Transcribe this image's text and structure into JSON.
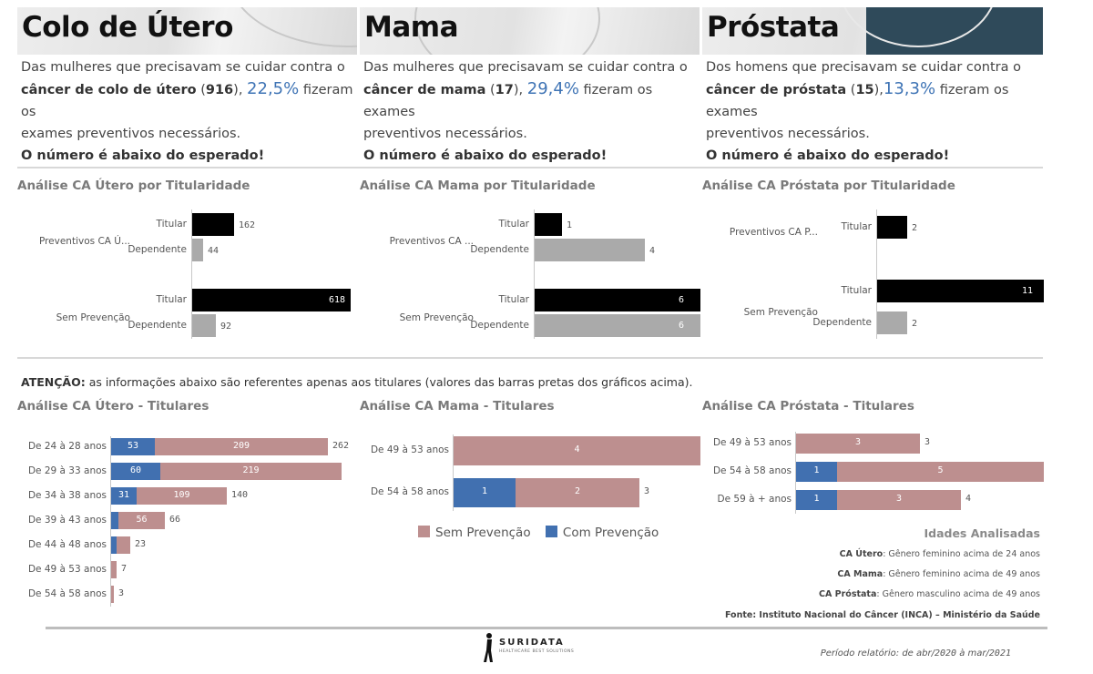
{
  "colors": {
    "black": "#000000",
    "gray": "#aaaaaa",
    "pink": "#bd8f8f",
    "blue": "#4170b0",
    "accent": "#3f74b5"
  },
  "headers": [
    {
      "title": "Colo de Útero",
      "line1": "Das mulheres que precisavam se cuidar contra o",
      "cancer": "câncer de colo de útero",
      "count": "916",
      "pct": "22,5%",
      "rest": "fizeram os",
      "line3": "exames preventivos necessários.",
      "warning": "O número é abaixo do esperado!"
    },
    {
      "title": "Mama",
      "line1": "Das mulheres que precisavam se cuidar contra o",
      "cancer": "câncer de mama",
      "count": "17",
      "pct": "29,4%",
      "rest": "fizeram os exames",
      "line3": "preventivos necessários.",
      "warning": "O número é abaixo do esperado!"
    },
    {
      "title": "Próstata",
      "line1": "Dos homens que precisavam se cuidar contra o",
      "cancer": "câncer de próstata",
      "count": "15",
      "pct": "13,3%",
      "rest": "fizeram os exames",
      "line3": "preventivos necessários.",
      "warning": "O número é abaixo do esperado!"
    }
  ],
  "attention": {
    "label": "ATENÇÃO:",
    "text": "as informações abaixo são referentes apenas aos titulares (valores das barras pretas dos gráficos acima)."
  },
  "chart_data": [
    {
      "type": "bar",
      "title": "Análise CA Útero por Titularidade",
      "groups": [
        {
          "label": "Preventivos CA Ú...",
          "bars": [
            {
              "label": "Titular",
              "value": 162
            },
            {
              "label": "Dependente",
              "value": 44
            }
          ]
        },
        {
          "label": "Sem Prevenção",
          "bars": [
            {
              "label": "Titular",
              "value": 618
            },
            {
              "label": "Dependente",
              "value": 92
            }
          ]
        }
      ]
    },
    {
      "type": "bar",
      "title": "Análise CA Mama por Titularidade",
      "groups": [
        {
          "label": "Preventivos CA ...",
          "bars": [
            {
              "label": "Titular",
              "value": 1
            },
            {
              "label": "Dependente",
              "value": 4
            }
          ]
        },
        {
          "label": "Sem Prevenção",
          "bars": [
            {
              "label": "Titular",
              "value": 6
            },
            {
              "label": "Dependente",
              "value": 6
            }
          ]
        }
      ]
    },
    {
      "type": "bar",
      "title": "Análise CA Próstata por Titularidade",
      "groups": [
        {
          "label": "Preventivos CA P...",
          "bars": [
            {
              "label": "Titular",
              "value": 2
            }
          ]
        },
        {
          "label": "Sem Prevenção",
          "bars": [
            {
              "label": "Titular",
              "value": 11
            },
            {
              "label": "Dependente",
              "value": 2
            }
          ]
        }
      ]
    },
    {
      "type": "bar",
      "stacked": true,
      "title": "Análise CA Útero - Titulares",
      "categories": [
        "De 24 à 28 anos",
        "De 29 à 33 anos",
        "De 34 à 38 anos",
        "De 39 à 43 anos",
        "De 44 à 48 anos",
        "De 49 à 53 anos",
        "De 54 à 58 anos"
      ],
      "series": [
        {
          "name": "Com Prevenção",
          "values": [
            53,
            60,
            31,
            9,
            7,
            0,
            0
          ]
        },
        {
          "name": "Sem Prevenção",
          "values": [
            209,
            219,
            109,
            56,
            16,
            7,
            3
          ]
        }
      ],
      "totals": [
        262,
        279,
        140,
        66,
        23,
        7,
        3
      ],
      "shown_totals": [
        "262",
        "",
        "140",
        "66",
        "23",
        "7",
        "3"
      ],
      "shown_com": [
        "53",
        "60",
        "31",
        "",
        "",
        "",
        ""
      ],
      "shown_sem": [
        "209",
        "219",
        "109",
        "56",
        "",
        "",
        ""
      ]
    },
    {
      "type": "bar",
      "stacked": true,
      "title": "Análise CA Mama - Titulares",
      "categories": [
        "De 49 à 53 anos",
        "De 54 à 58 anos"
      ],
      "series": [
        {
          "name": "Com Prevenção",
          "values": [
            0,
            1
          ]
        },
        {
          "name": "Sem Prevenção",
          "values": [
            4,
            2
          ]
        }
      ],
      "totals": [
        4,
        3
      ],
      "shown_totals": [
        "",
        "3"
      ],
      "shown_com": [
        "",
        "1"
      ],
      "shown_sem": [
        "4",
        "2"
      ]
    },
    {
      "type": "bar",
      "stacked": true,
      "title": "Análise CA Próstata - Titulares",
      "categories": [
        "De 49 à 53 anos",
        "De 54 à 58 anos",
        "De 59 à + anos"
      ],
      "series": [
        {
          "name": "Com Prevenção",
          "values": [
            0,
            1,
            1
          ]
        },
        {
          "name": "Sem Prevenção",
          "values": [
            3,
            5,
            3
          ]
        }
      ],
      "totals": [
        3,
        6,
        4
      ],
      "shown_totals": [
        "3",
        "",
        "4"
      ],
      "shown_com": [
        "",
        "1",
        "1"
      ],
      "shown_sem": [
        "3",
        "5",
        "3"
      ]
    }
  ],
  "legend": {
    "sem": "Sem Prevenção",
    "com": "Com Prevenção"
  },
  "ages": {
    "title": "Idades Analisadas",
    "items": [
      {
        "label": "CA Útero",
        "text": ": Gênero feminino acima de 24 anos"
      },
      {
        "label": "CA Mama",
        "text": ": Gênero feminino acima de 49 anos"
      },
      {
        "label": "CA Próstata",
        "text": ": Gênero masculino acima de 49 anos"
      }
    ],
    "source": "Fonte: Instituto Nacional do Câncer (INCA) – Ministério da Saúde"
  },
  "footer": {
    "brand": "SURIDATA",
    "tagline": "HEALTHCARE BEST SOLUTIONS",
    "period_label": "Período relatório: de abr/",
    "period_start": "2020",
    "period_mid": " à mar/",
    "period_end": "2021"
  }
}
